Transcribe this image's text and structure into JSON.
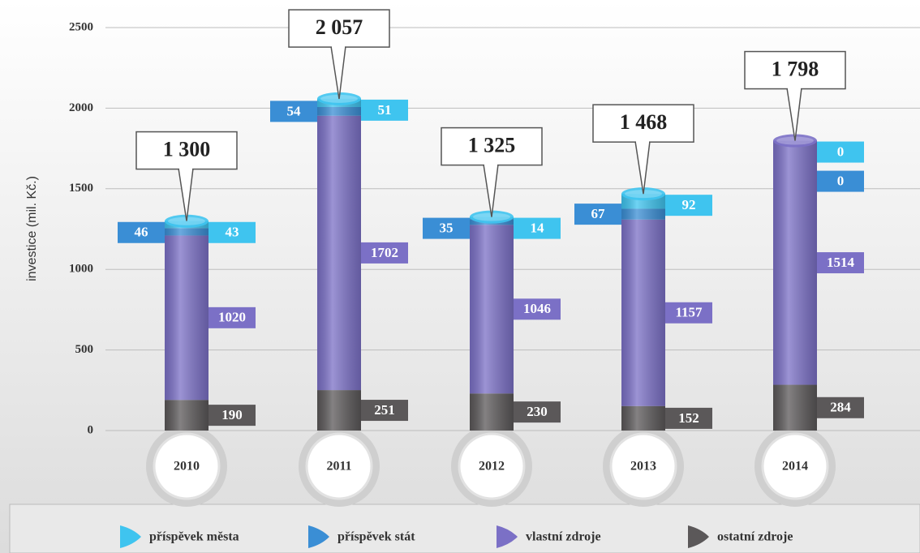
{
  "chart_data": {
    "type": "stacked-cylinder",
    "y_label": "investice (mil. Kč.)",
    "categories": [
      "2010",
      "2011",
      "2012",
      "2013",
      "2014"
    ],
    "series": [
      {
        "name": "příspěvek města",
        "color": "#3fc4ef",
        "values": [
          43,
          51,
          14,
          92,
          0
        ]
      },
      {
        "name": "příspěvek stát",
        "color": "#3a8ed5",
        "values": [
          46,
          54,
          35,
          67,
          0
        ]
      },
      {
        "name": "vlastní zdroje",
        "color": "#7b70c6",
        "values": [
          1020,
          1702,
          1046,
          1157,
          1514
        ]
      },
      {
        "name": "ostatní zdroje",
        "color": "#5b5859",
        "values": [
          190,
          251,
          230,
          152,
          284
        ]
      }
    ],
    "totals": [
      1300,
      2057,
      1325,
      1468,
      1798
    ],
    "total_labels": [
      "1 300",
      "2 057",
      "1 325",
      "1 468",
      "1 798"
    ],
    "ylim": [
      0,
      2500
    ],
    "yticks": [
      0,
      500,
      1000,
      1500,
      2000,
      2500
    ],
    "grid": true
  }
}
